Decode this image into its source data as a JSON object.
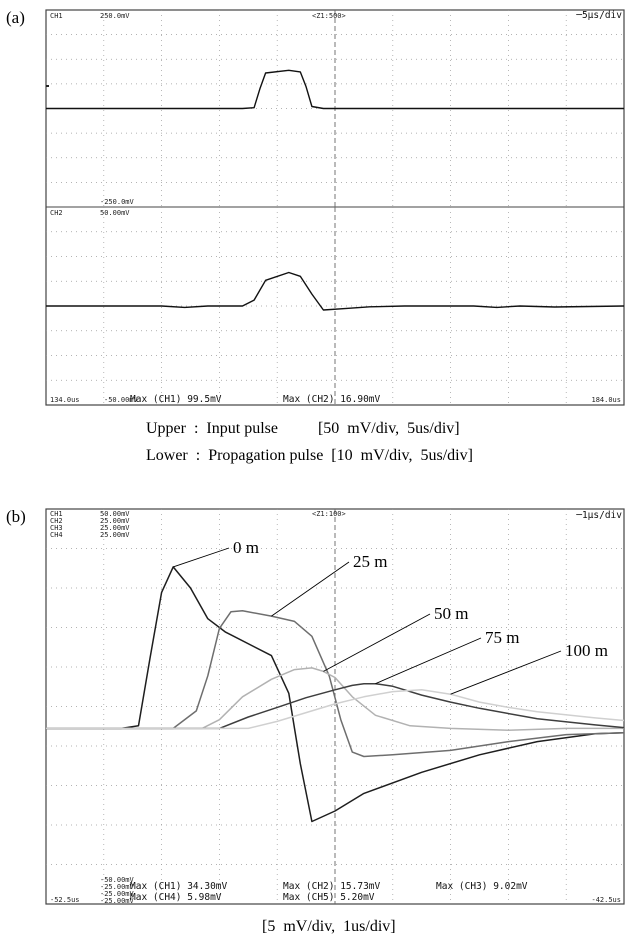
{
  "panel_a": {
    "label": "(a)",
    "ch1_label": "CH1",
    "ch1_scale_top": "250.0mV",
    "zoom_label": "<Z1:500>",
    "timebase_label": "─5μs/div",
    "ch1_scale_bottom": "-250.0mV",
    "ch2_label": "CH2",
    "ch2_scale_top": "50.00mV",
    "ch2_scale_bottom": "-50.00mV",
    "time_start": "134.0us",
    "time_end": "184.0us",
    "meas1": "Max (CH1)  99.5mV",
    "meas2": "Max (CH2)  16.90mV",
    "caption_upper": "Upper  :  Input pulse          [50  mV/div,  5us/div]",
    "caption_lower": "Lower  :  Propagation pulse  [10  mV/div,  5us/div]"
  },
  "panel_b": {
    "label": "(b)",
    "ch1_label": "CH1",
    "ch1_scale": "50.00mV",
    "ch2_label": "CH2",
    "ch2_scale": "25.00mV",
    "ch3_label": "CH3",
    "ch3_scale": "25.00mV",
    "ch4_label": "CH4",
    "ch4_scale": "25.00mV",
    "zoom_label": "<Z1:100>",
    "timebase_label": "─1μs/div",
    "bottom_scale_1": "-50.00mV",
    "bottom_scale_2": "-25.00mV",
    "bottom_scale_3": "-25.00mV",
    "bottom_scale_4": "-25.00mV",
    "time_start": "-52.5us",
    "time_end": "-42.5us",
    "meas_ch1": "Max (CH1)  34.30mV",
    "meas_ch2": "Max (CH2)  15.73mV",
    "meas_ch3": "Max (CH3)  9.02mV",
    "meas_ch4": "Max (CH4)  5.98mV",
    "meas_ch5": "Max (CH5)  5.20mV",
    "caption": "[5  mV/div,  1us/div]"
  },
  "chart_data": [
    {
      "type": "line",
      "title": "",
      "x_unit": "us",
      "xlim": [
        134.0,
        184.0
      ],
      "series": [
        {
          "name": "CH1",
          "ylim": [
            -250.0,
            250.0
          ],
          "x": [
            134,
            151,
            152,
            152.5,
            153,
            155,
            156,
            156.5,
            157,
            158,
            184
          ],
          "values": [
            0,
            0,
            2,
            50,
            90,
            97,
            93,
            55,
            5,
            0,
            0
          ]
        },
        {
          "name": "CH2",
          "ylim": [
            -50.0,
            50.0
          ],
          "x": [
            134,
            144,
            146,
            148,
            151,
            152,
            153,
            155,
            156,
            157,
            158,
            160,
            162,
            165,
            171,
            173,
            175,
            178,
            184
          ],
          "values": [
            0,
            0,
            -0.7,
            0,
            0,
            3,
            13,
            16.9,
            15,
            6,
            -2,
            -1.2,
            -0.4,
            0,
            0,
            -0.7,
            0,
            -0.5,
            0
          ]
        }
      ]
    },
    {
      "type": "line",
      "title": "",
      "x_unit": "us",
      "xlim": [
        -52.5,
        -42.5
      ],
      "ylim": [
        -20,
        25
      ],
      "series": [
        {
          "name": "0 m",
          "x": [
            -52.5,
            -51.4,
            -51.2,
            -50.9,
            -50.7,
            -50.5,
            -50.3,
            -50.0,
            -49.7,
            -49.4,
            -48.6,
            -48.3,
            -48.2,
            -48.1,
            -47.9,
            -47.5,
            -47.0,
            -46.0,
            -45.0,
            -44.0,
            -43.0,
            -42.5
          ],
          "values": [
            0,
            0,
            0,
            0.3,
            8,
            15.5,
            18.4,
            16,
            12.5,
            11,
            8.3,
            4,
            0,
            -4,
            -10.6,
            -9.4,
            -7.4,
            -5.0,
            -3.0,
            -1.5,
            -0.6,
            -0.5
          ]
        },
        {
          "name": "25 m",
          "x": [
            -52.5,
            -50.3,
            -49.9,
            -49.7,
            -49.5,
            -49.3,
            -49.1,
            -48.6,
            -48.2,
            -47.9,
            -47.6,
            -47.4,
            -47.2,
            -47.0,
            -46.5,
            -45.5,
            -44.5,
            -43.5,
            -42.5
          ],
          "values": [
            0,
            0,
            2,
            6,
            11.4,
            13.3,
            13.4,
            12.8,
            12.2,
            10.5,
            6,
            1,
            -2.7,
            -3.2,
            -3.0,
            -2.5,
            -1.5,
            -0.7,
            -0.5
          ]
        },
        {
          "name": "50 m",
          "x": [
            -52.5,
            -49.8,
            -49.5,
            -49.1,
            -48.6,
            -48.2,
            -47.9,
            -47.7,
            -47.5,
            -47.2,
            -46.8,
            -46.2,
            -45.5,
            -44.5,
            -43.5,
            -42.5
          ],
          "values": [
            0,
            0,
            1,
            3.6,
            5.6,
            6.7,
            6.9,
            6.5,
            5.8,
            3.6,
            1.5,
            0.3,
            0,
            -0.2,
            0,
            0
          ]
        },
        {
          "name": "75 m",
          "x": [
            -52.5,
            -49.5,
            -49.0,
            -48.5,
            -48.0,
            -47.5,
            -47.2,
            -47.0,
            -46.8,
            -46.5,
            -46.0,
            -45.5,
            -45.0,
            -44.0,
            -43.0,
            -42.5
          ],
          "values": [
            0,
            0,
            1.3,
            2.4,
            3.5,
            4.4,
            4.9,
            5.1,
            5.1,
            4.8,
            3.8,
            3.0,
            2.3,
            1.1,
            0.4,
            0.1
          ]
        },
        {
          "name": "100 m",
          "x": [
            -52.5,
            -49.0,
            -48.5,
            -48.0,
            -47.5,
            -47.0,
            -46.5,
            -46.0,
            -45.5,
            -45.0,
            -44.5,
            -44.0,
            -43.0,
            -42.5
          ],
          "values": [
            0,
            0,
            0.8,
            1.8,
            2.8,
            3.6,
            4.2,
            4.4,
            3.9,
            3.0,
            2.4,
            1.9,
            1.2,
            0.9
          ]
        }
      ]
    }
  ],
  "colors": {
    "trace_0m": "#1e1e1e",
    "trace_25m": "#6e6e6e",
    "trace_50m": "#b2b2b2",
    "trace_75m": "#3e3e3e",
    "trace_100m": "#d0d0d0",
    "grid": "#9a9a9a",
    "frame": "#444444"
  }
}
